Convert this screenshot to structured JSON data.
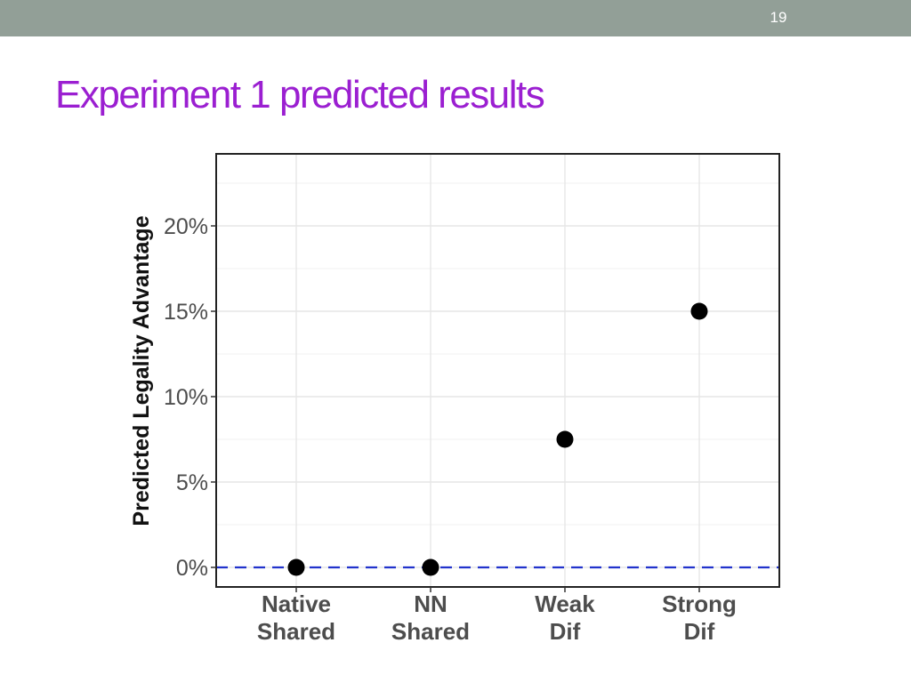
{
  "slide": {
    "number": "19",
    "title": "Experiment 1 predicted results"
  },
  "colors": {
    "header_band": "#929f97",
    "title": "#9b1fd1",
    "points": "#000000",
    "reference_line": "#2233cc",
    "grid": "#e6e6e6"
  },
  "chart_data": {
    "type": "scatter",
    "ylabel": "Predicted Legality Advantage",
    "xlabel": "",
    "categories": [
      "Native Shared",
      "NN Shared",
      "Weak Dif",
      "Strong Dif"
    ],
    "category_labels": [
      [
        "Native",
        "Shared"
      ],
      [
        "NN",
        "Shared"
      ],
      [
        "Weak",
        "Dif"
      ],
      [
        "Strong",
        "Dif"
      ]
    ],
    "values": [
      0,
      0,
      7.5,
      15
    ],
    "ylim": [
      -1.2,
      24
    ],
    "yticks": [
      0,
      5,
      10,
      15,
      20
    ],
    "ytick_labels": [
      "0%",
      "5%",
      "10%",
      "15%",
      "20%"
    ],
    "reference_line": {
      "y": 0,
      "style": "dashed"
    },
    "grid": true,
    "legend": false
  }
}
